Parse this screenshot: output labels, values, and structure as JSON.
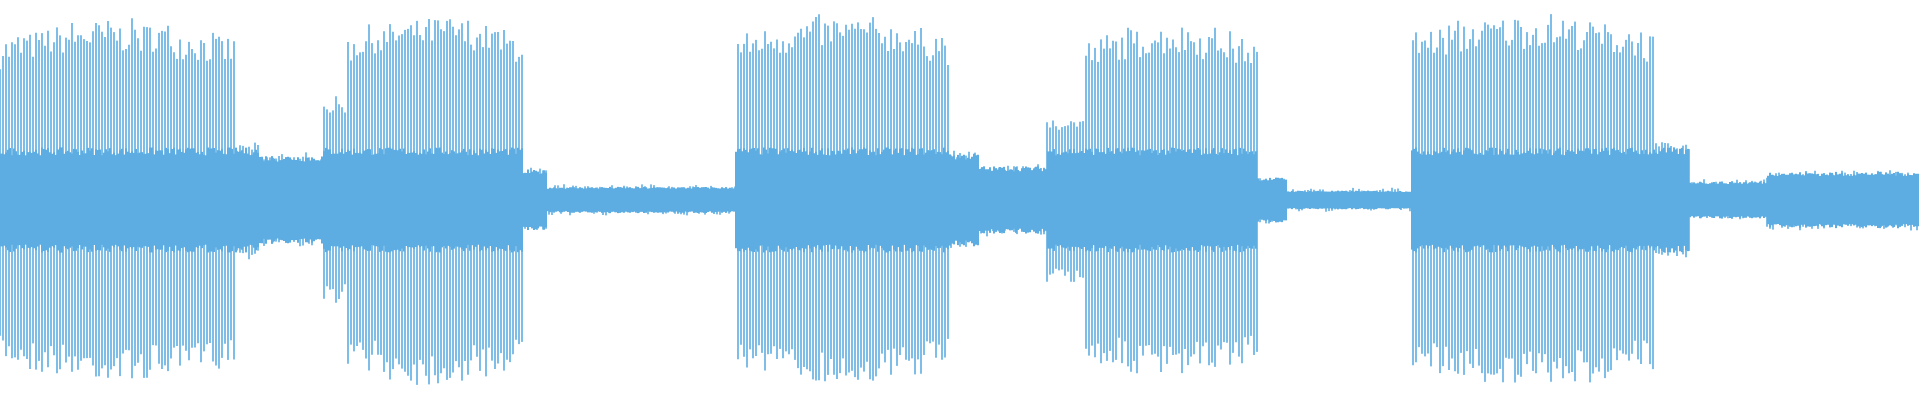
{
  "waveform": {
    "color": "#5dade2",
    "background": "#ffffff",
    "segments": [
      {
        "from": 0.0,
        "to": 0.122,
        "level": 0.96,
        "kind": "loud"
      },
      {
        "from": 0.122,
        "to": 0.135,
        "level": 0.3,
        "kind": "fade"
      },
      {
        "from": 0.135,
        "to": 0.168,
        "level": 0.24,
        "kind": "quiet"
      },
      {
        "from": 0.168,
        "to": 0.18,
        "level": 0.55,
        "kind": "rise"
      },
      {
        "from": 0.18,
        "to": 0.272,
        "level": 0.98,
        "kind": "loud"
      },
      {
        "from": 0.272,
        "to": 0.285,
        "level": 0.16,
        "kind": "fade"
      },
      {
        "from": 0.285,
        "to": 0.383,
        "level": 0.07,
        "kind": "quiet"
      },
      {
        "from": 0.383,
        "to": 0.495,
        "level": 0.98,
        "kind": "loud"
      },
      {
        "from": 0.495,
        "to": 0.51,
        "level": 0.25,
        "kind": "fade"
      },
      {
        "from": 0.51,
        "to": 0.545,
        "level": 0.18,
        "kind": "quiet"
      },
      {
        "from": 0.545,
        "to": 0.565,
        "level": 0.45,
        "kind": "rise"
      },
      {
        "from": 0.565,
        "to": 0.655,
        "level": 0.94,
        "kind": "loud"
      },
      {
        "from": 0.655,
        "to": 0.67,
        "level": 0.12,
        "kind": "fade"
      },
      {
        "from": 0.67,
        "to": 0.735,
        "level": 0.05,
        "kind": "quiet"
      },
      {
        "from": 0.735,
        "to": 0.862,
        "level": 0.99,
        "kind": "loud"
      },
      {
        "from": 0.862,
        "to": 0.88,
        "level": 0.3,
        "kind": "fade"
      },
      {
        "from": 0.88,
        "to": 0.92,
        "level": 0.1,
        "kind": "quiet"
      },
      {
        "from": 0.92,
        "to": 1.0,
        "level": 0.15,
        "kind": "quiet"
      }
    ]
  }
}
